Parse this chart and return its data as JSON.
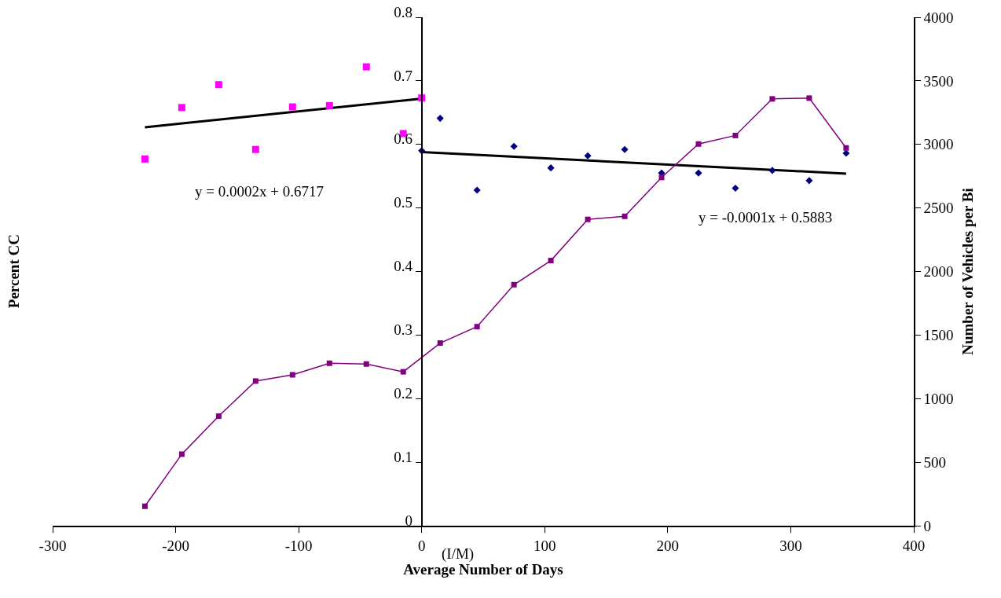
{
  "chart_data": {
    "type": "scatter",
    "xlabel": "Average Number of Days",
    "ylabel": "Percent CC",
    "y2label": "Number of Vehicles per Bi",
    "xlim": [
      -300,
      400
    ],
    "xticks": [
      -300,
      -200,
      -100,
      0,
      100,
      200,
      300,
      400
    ],
    "ylim": [
      0,
      0.8
    ],
    "yticks": [
      0,
      0.1,
      0.2,
      0.3,
      0.4,
      0.5,
      0.6,
      0.7,
      0.8
    ],
    "y2lim": [
      0,
      4000
    ],
    "y2ticks": [
      0,
      500,
      1000,
      1500,
      2000,
      2500,
      3000,
      3500,
      4000
    ],
    "series": [
      {
        "color": "#ff00ff",
        "marker": "square",
        "x": [
          -225,
          -195,
          -165,
          -135,
          -105,
          -75,
          -45,
          -15,
          0
        ],
        "values": [
          0.577,
          0.658,
          0.694,
          0.592,
          0.659,
          0.661,
          0.722,
          0.617,
          0.673
        ]
      },
      {
        "color": "#000080",
        "marker": "diamond",
        "x": [
          0,
          15,
          45,
          75,
          105,
          135,
          165,
          195,
          225,
          255,
          285,
          315,
          345
        ],
        "values": [
          0.59,
          0.641,
          0.528,
          0.597,
          0.563,
          0.582,
          0.592,
          0.555,
          0.555,
          0.531,
          0.559,
          0.543,
          0.586
        ]
      },
      {
        "type": "line",
        "axis": "y2",
        "color": "#800080",
        "marker": "square",
        "line_style": "solid",
        "x": [
          -225,
          -195,
          -165,
          -135,
          -105,
          -75,
          -45,
          -15,
          15,
          45,
          75,
          105,
          135,
          165,
          195,
          225,
          255,
          285,
          315,
          345
        ],
        "values": [
          153,
          563,
          862,
          1138,
          1187,
          1278,
          1272,
          1211,
          1437,
          1566,
          1896,
          2086,
          2410,
          2434,
          2740,
          3003,
          3070,
          3358,
          3364,
          2972
        ]
      },
      {
        "type": "line",
        "color": "#000000",
        "marker": "none",
        "line_style": "solid",
        "x": [
          -225,
          0
        ],
        "values": [
          0.627,
          0.672
        ]
      },
      {
        "type": "line",
        "color": "#000000",
        "marker": "none",
        "line_style": "solid",
        "x": [
          0,
          345
        ],
        "values": [
          0.588,
          0.554
        ]
      }
    ],
    "annotations": [
      "y = 0.0002x + 0.6717",
      "y = -0.0001x + 0.5883",
      "(I/M)"
    ]
  }
}
